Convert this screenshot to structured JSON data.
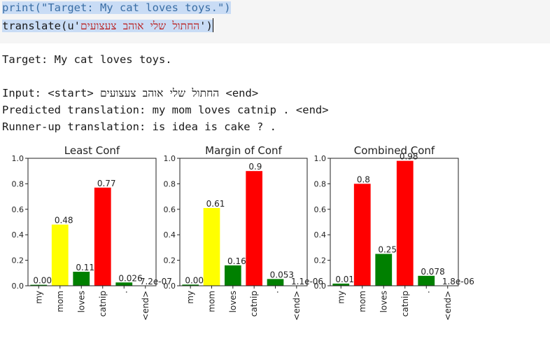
{
  "code": {
    "line1": "print(\"Target: My cat loves toys.\")",
    "line2_prefix": "translate(u'",
    "line2_string": "החתול שלי אוהב צעצועים",
    "line2_suffix": "')"
  },
  "output": {
    "target": "Target: My cat loves toys.",
    "input": "Input: <start> החתול שלי אוהב צעצועים <end>",
    "predicted": "Predicted translation: my mom loves catnip . <end>",
    "runner_up": "Runner-up translation: is idea is cake ? ."
  },
  "colors": {
    "low": "#008000",
    "mid": "#ffff00",
    "high": "#ff0000"
  },
  "chart_data": [
    {
      "type": "bar",
      "title": "Least Conf",
      "categories": [
        "my",
        "mom",
        "loves",
        "catnip",
        ".",
        "<end>"
      ],
      "values": [
        0.0077,
        0.48,
        0.11,
        0.77,
        0.026,
        7.2e-07
      ],
      "labels": [
        "0.0077",
        "0.48",
        "0.11",
        "0.77",
        "0.026",
        "7.2e-07"
      ],
      "bar_colors": [
        "#008000",
        "#ffff00",
        "#008000",
        "#ff0000",
        "#008000",
        "#008000"
      ],
      "ylim": [
        0,
        1.0
      ],
      "yticks": [
        "0.0",
        "0.2",
        "0.4",
        "0.6",
        "0.8",
        "1.0"
      ],
      "xlabel": "",
      "ylabel": ""
    },
    {
      "type": "bar",
      "title": "Margin of Conf",
      "categories": [
        "my",
        "mom",
        "loves",
        "catnip",
        ".",
        "<end>"
      ],
      "values": [
        0.0092,
        0.61,
        0.16,
        0.9,
        0.053,
        1.1e-06
      ],
      "labels": [
        "0.0092",
        "0.61",
        "0.16",
        "0.9",
        "0.053",
        "1.1e-06"
      ],
      "bar_colors": [
        "#008000",
        "#ffff00",
        "#008000",
        "#ff0000",
        "#008000",
        "#008000"
      ],
      "ylim": [
        0,
        1.0
      ],
      "yticks": [
        "0.0",
        "0.2",
        "0.4",
        "0.6",
        "0.8",
        "1.0"
      ],
      "xlabel": "",
      "ylabel": ""
    },
    {
      "type": "bar",
      "title": "Combined Conf",
      "categories": [
        "my",
        "mom",
        "loves",
        "catnip",
        ".",
        "<end>"
      ],
      "values": [
        0.017,
        0.8,
        0.25,
        0.98,
        0.078,
        1.8e-06
      ],
      "labels": [
        "0.017",
        "0.8",
        "0.25",
        "0.98",
        "0.078",
        "1.8e-06"
      ],
      "bar_colors": [
        "#008000",
        "#ff0000",
        "#008000",
        "#ff0000",
        "#008000",
        "#008000"
      ],
      "ylim": [
        0,
        1.0
      ],
      "yticks": [
        "0.0",
        "0.2",
        "0.4",
        "0.6",
        "0.8",
        "1.0"
      ],
      "xlabel": "",
      "ylabel": ""
    }
  ]
}
